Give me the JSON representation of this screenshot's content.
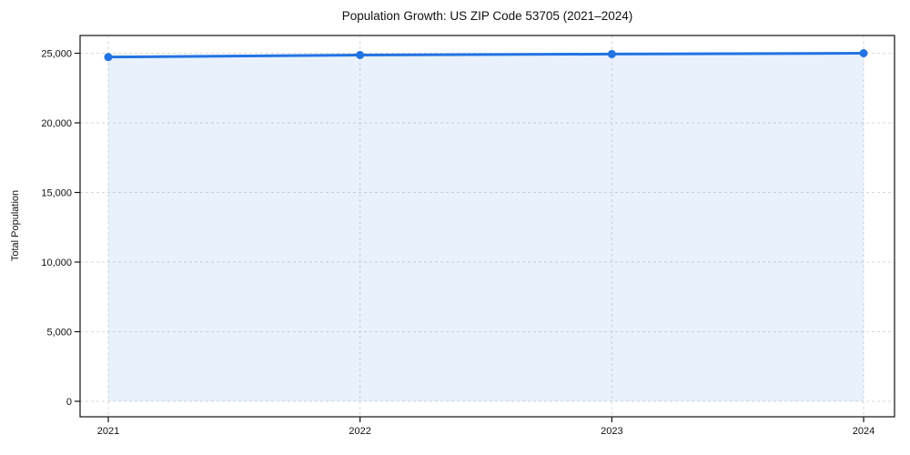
{
  "chart_data": {
    "type": "line",
    "title": "Population Growth: US ZIP Code 53705 (2021–2024)",
    "xlabel": "",
    "ylabel": "Total Population",
    "categories": [
      "2021",
      "2022",
      "2023",
      "2024"
    ],
    "series": [
      {
        "name": "Total Population",
        "values": [
          24730,
          24870,
          24940,
          25000
        ]
      }
    ],
    "ytick_values": [
      0,
      5000,
      10000,
      15000,
      20000,
      25000
    ],
    "ytick_labels": [
      "0",
      "5,000",
      "10,000",
      "15,000",
      "20,000",
      "25,000"
    ],
    "ylim": [
      0,
      25000
    ],
    "grid": "dashed, both axes",
    "legend_position": "none",
    "marker": "circle",
    "area_fill": true,
    "colors": {
      "line": "#2273e3",
      "marker": "#2273e3",
      "fill": "rgba(34,115,227,0.10)",
      "gridline": "#d9d9d9",
      "spine": "#111111",
      "background": "#ffffff"
    }
  }
}
